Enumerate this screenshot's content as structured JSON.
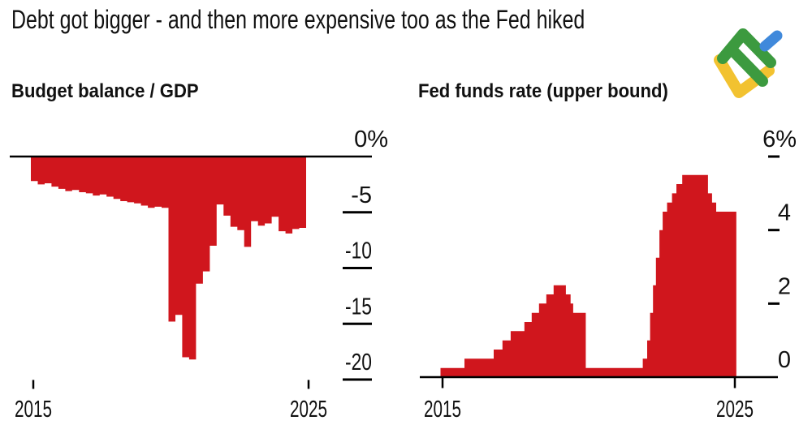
{
  "header": {
    "title": "Debt got bigger - and then more expensive too as the Fed hiked"
  },
  "brand": {
    "name": "litefinance-logo"
  },
  "colors": {
    "series_red": "#D0161D",
    "axis_black": "#000000",
    "text_black": "#111111",
    "logo_green": "#3C9A3F",
    "logo_blue": "#4089DB",
    "logo_yellow": "#F2C230"
  },
  "chart_data": [
    {
      "type": "area",
      "title": "Budget balance / GDP",
      "unit": "% of GDP",
      "frequency": "quarterly",
      "start_year": 2015,
      "end_year": 2025,
      "ylim": [
        -20,
        0
      ],
      "grid": false,
      "legend": "none",
      "y_axis": {
        "labels": [
          "0%",
          "-5",
          "-10",
          "-15",
          "-20"
        ],
        "values": [
          0,
          -5,
          -10,
          -15,
          -20
        ],
        "side": "right"
      },
      "x_axis": {
        "labels": [
          "2015",
          "2025"
        ],
        "values": [
          2015,
          2025
        ]
      },
      "values": [
        -2.2,
        -2.5,
        -2.4,
        -2.7,
        -2.9,
        -3.1,
        -3.0,
        -3.2,
        -3.3,
        -3.5,
        -3.4,
        -3.6,
        -3.8,
        -4.0,
        -4.1,
        -4.2,
        -4.4,
        -4.6,
        -4.5,
        -4.6,
        -14.8,
        -14.2,
        -18.0,
        -18.2,
        -11.4,
        -10.3,
        -8.0,
        -4.3,
        -5.3,
        -6.3,
        -6.6,
        -8.1,
        -5.8,
        -6.2,
        -6.0,
        -5.4,
        -6.7,
        -6.9,
        -6.5,
        -6.4
      ]
    },
    {
      "type": "step-area",
      "title": "Fed funds rate (upper bound)",
      "unit": "%",
      "start_year": 2014.93,
      "end_year": 2025.05,
      "ylim": [
        0,
        6
      ],
      "grid": false,
      "legend": "none",
      "y_axis": {
        "labels": [
          "6%",
          "4",
          "2",
          "0"
        ],
        "values": [
          6,
          4,
          2,
          0
        ],
        "side": "right"
      },
      "x_axis": {
        "labels": [
          "2015",
          "2025"
        ],
        "values": [
          2015,
          2025
        ]
      },
      "steps": [
        [
          2014.93,
          0.25
        ],
        [
          2015.75,
          0.5
        ],
        [
          2016.75,
          0.75
        ],
        [
          2017.05,
          1.0
        ],
        [
          2017.33,
          1.25
        ],
        [
          2017.8,
          1.5
        ],
        [
          2018.05,
          1.75
        ],
        [
          2018.3,
          2.0
        ],
        [
          2018.55,
          2.25
        ],
        [
          2018.8,
          2.5
        ],
        [
          2019.22,
          2.25
        ],
        [
          2019.38,
          2.0
        ],
        [
          2019.47,
          1.75
        ],
        [
          2019.9,
          0.25
        ],
        [
          2021.85,
          0.5
        ],
        [
          2022.0,
          1.0
        ],
        [
          2022.1,
          1.75
        ],
        [
          2022.2,
          2.5
        ],
        [
          2022.3,
          3.25
        ],
        [
          2022.42,
          4.0
        ],
        [
          2022.53,
          4.5
        ],
        [
          2022.68,
          4.75
        ],
        [
          2022.85,
          5.0
        ],
        [
          2023.0,
          5.25
        ],
        [
          2023.2,
          5.5
        ],
        [
          2024.08,
          5.0
        ],
        [
          2024.22,
          4.75
        ],
        [
          2024.36,
          4.5
        ]
      ]
    }
  ]
}
